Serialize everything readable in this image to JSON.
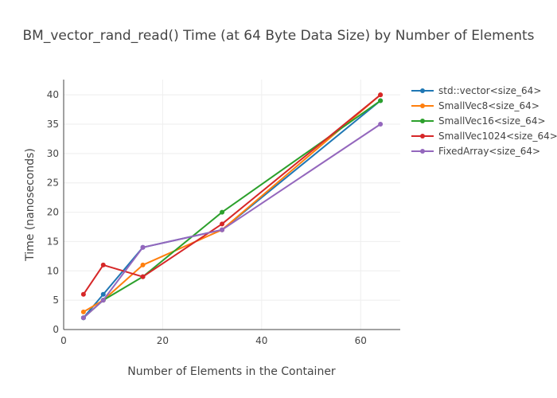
{
  "chart_data": {
    "type": "line",
    "title": "BM_vector_rand_read() Time (at 64 Byte Data Size) by Number of Elements",
    "xlabel": "Number of Elements in the Container",
    "ylabel": "Time (nanoseconds)",
    "xlim": [
      0,
      68
    ],
    "ylim": [
      0,
      42.6
    ],
    "xticks": [
      0,
      20,
      40,
      60
    ],
    "yticks": [
      0,
      5,
      10,
      15,
      20,
      25,
      30,
      35,
      40
    ],
    "grid": true,
    "legend_position": "right",
    "x": [
      4,
      8,
      16,
      32,
      64
    ],
    "series": [
      {
        "name": "std::vector<size_64>",
        "color": "#1f77b4",
        "values": [
          2,
          6,
          14,
          17,
          39
        ]
      },
      {
        "name": "SmallVec8<size_64>",
        "color": "#ff7f0e",
        "values": [
          3,
          5,
          11,
          17,
          40
        ]
      },
      {
        "name": "SmallVec16<size_64>",
        "color": "#2ca02c",
        "values": [
          2,
          5,
          9,
          20,
          39
        ]
      },
      {
        "name": "SmallVec1024<size_64>",
        "color": "#d62728",
        "values": [
          6,
          11,
          9,
          18,
          40
        ]
      },
      {
        "name": "FixedArray<size_64>",
        "color": "#9467bd",
        "values": [
          2,
          5,
          14,
          17,
          35
        ]
      }
    ]
  }
}
